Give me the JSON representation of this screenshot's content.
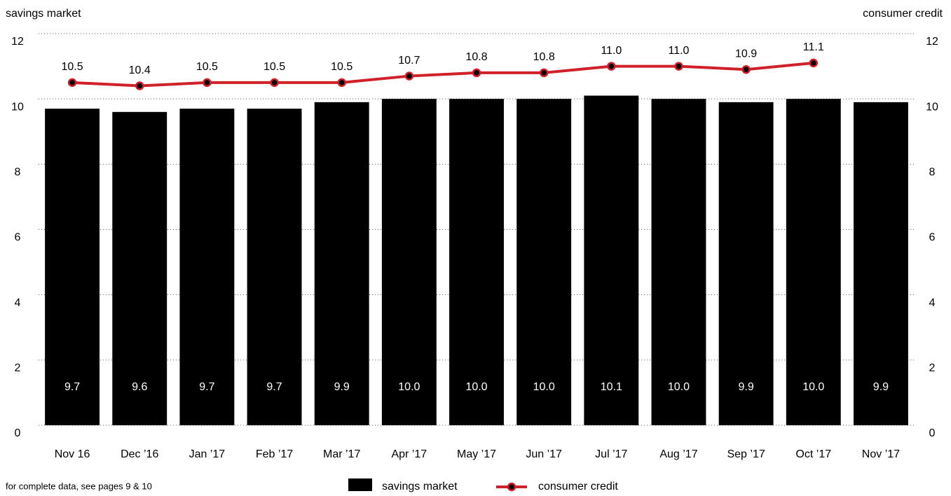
{
  "chart_data": {
    "type": "bar-line",
    "categories": [
      "Nov 16",
      "Dec ’16",
      "Jan ’17",
      "Feb ’17",
      "Mar ’17",
      "Apr ’17",
      "May ’17",
      "Jun ’17",
      "Jul ’17",
      "Aug ’17",
      "Sep ’17",
      "Oct ’17",
      "Nov ’17"
    ],
    "y_label": "savings market",
    "y2_label": "consumer credit",
    "ylim": [
      0,
      12
    ],
    "yticks": [
      0,
      2,
      4,
      6,
      8,
      10,
      12
    ],
    "y2lim": [
      0,
      12
    ],
    "y2ticks": [
      0,
      2,
      4,
      6,
      8,
      10,
      12
    ],
    "grid": true,
    "series": [
      {
        "name": "savings market",
        "type": "bar",
        "color": "#000000",
        "axis": "y",
        "values": [
          9.7,
          9.6,
          9.7,
          9.7,
          9.9,
          10.0,
          10.0,
          10.0,
          10.1,
          10.0,
          9.9,
          10.0,
          9.9
        ],
        "value_labels": [
          "9.7",
          "9.6",
          "9.7",
          "9.7",
          "9.9",
          "10.0",
          "10.0",
          "10.0",
          "10.1",
          "10.0",
          "9.9",
          "10.0",
          "9.9"
        ]
      },
      {
        "name": "consumer credit",
        "type": "line",
        "color": "#d0202a",
        "axis": "y2",
        "values": [
          10.5,
          10.4,
          10.5,
          10.5,
          10.5,
          10.7,
          10.8,
          10.8,
          11.0,
          11.0,
          10.9,
          11.1,
          null
        ],
        "value_labels": [
          "10.5",
          "10.4",
          "10.5",
          "10.5",
          "10.5",
          "10.7",
          "10.8",
          "10.8",
          "11.0",
          "11.0",
          "10.9",
          "11.1",
          null
        ]
      }
    ],
    "footnote": "for complete data, see pages 9 & 10"
  }
}
